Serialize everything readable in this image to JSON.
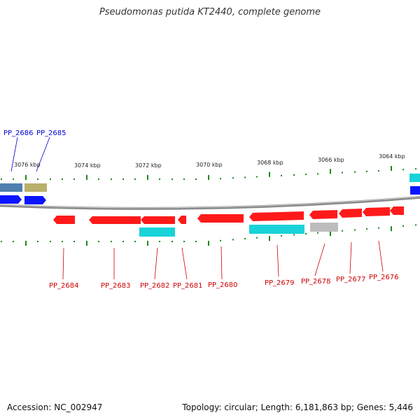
{
  "title": "Pseudomonas putida KT2440, complete genome",
  "footer": {
    "accession": "Accession: NC_002947",
    "info": "Topology: circular; Length: 6,181,863 bp; Genes: 5,446"
  },
  "scale": {
    "labels": [
      "3076 kbp",
      "3074 kbp",
      "3072 kbp",
      "3070 kbp",
      "3068 kbp",
      "3066 kbp",
      "3064 kbp"
    ]
  },
  "genes_plus": [
    {
      "label": "PP_2686",
      "color": "#0000cc"
    },
    {
      "label": "PP_2685",
      "color": "#0000cc"
    }
  ],
  "genes_minus": [
    {
      "label": "PP_2684",
      "color": "#cc0000"
    },
    {
      "label": "PP_2683",
      "color": "#cc0000"
    },
    {
      "label": "PP_2682",
      "color": "#cc0000"
    },
    {
      "label": "PP_2681",
      "color": "#cc0000"
    },
    {
      "label": "PP_2680",
      "color": "#cc0000"
    },
    {
      "label": "PP_2679",
      "color": "#cc0000"
    },
    {
      "label": "PP_2678",
      "color": "#cc0000"
    },
    {
      "label": "PP_2677",
      "color": "#cc0000"
    },
    {
      "label": "PP_2676",
      "color": "#cc0000"
    }
  ],
  "colors": {
    "cds": "#ff1a1a",
    "cds_plus": "#0a14ff",
    "feature_cyan": "#19d3d9",
    "feature_steel": "#4f80b0",
    "feature_olive": "#b8b06a",
    "feature_gray": "#bdbdbd",
    "backbone": "#8a8a8a",
    "tick": "#1a8a1a"
  }
}
